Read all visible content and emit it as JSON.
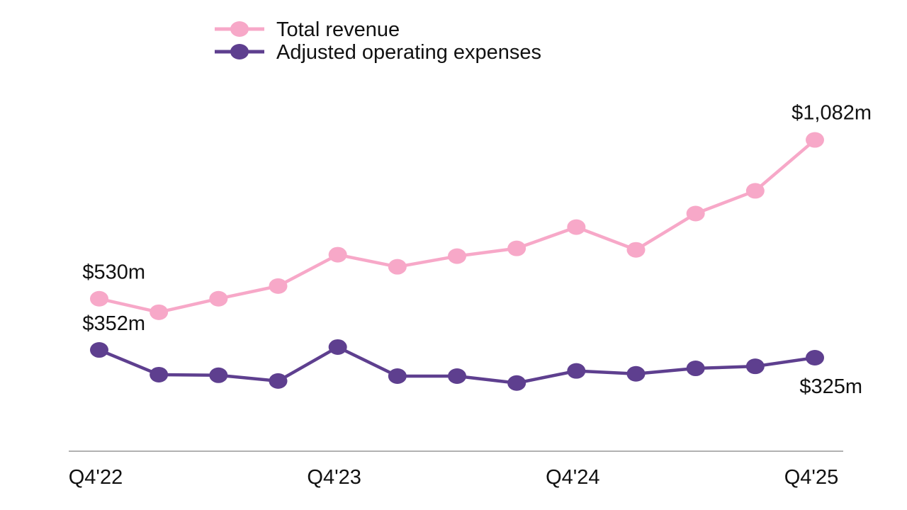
{
  "chart_data": {
    "type": "line",
    "title": "",
    "xlabel": "",
    "ylabel": "",
    "unit": "$m",
    "ylim": [
      0,
      1300
    ],
    "grid": false,
    "legend_position": "top-center",
    "x": [
      "Q4'22",
      "Q1'23",
      "Q2'23",
      "Q3'23",
      "Q4'23",
      "Q1'24",
      "Q2'24",
      "Q3'24",
      "Q4'24",
      "Q1'25",
      "Q2'25",
      "Q3'25",
      "Q4'25"
    ],
    "x_tick_labels": [
      "Q4'22",
      "Q4'23",
      "Q4'24",
      "Q4'25"
    ],
    "x_tick_indices": [
      0,
      4,
      8,
      12
    ],
    "series": [
      {
        "name": "Total revenue",
        "color": "#f7a8c8",
        "values": [
          530,
          483,
          530,
          574,
          683,
          641,
          678,
          705,
          779,
          700,
          826,
          905,
          1082
        ]
      },
      {
        "name": "Adjusted operating expenses",
        "color": "#5e3f8f",
        "values": [
          352,
          266,
          264,
          244,
          362,
          261,
          261,
          237,
          279,
          269,
          288,
          295,
          325
        ]
      }
    ],
    "annotations": [
      {
        "text": "$530m",
        "series": 0,
        "index": 0
      },
      {
        "text": "$1,082m",
        "series": 0,
        "index": 12
      },
      {
        "text": "$352m",
        "series": 1,
        "index": 0
      },
      {
        "text": "$325m",
        "series": 1,
        "index": 12
      }
    ]
  }
}
